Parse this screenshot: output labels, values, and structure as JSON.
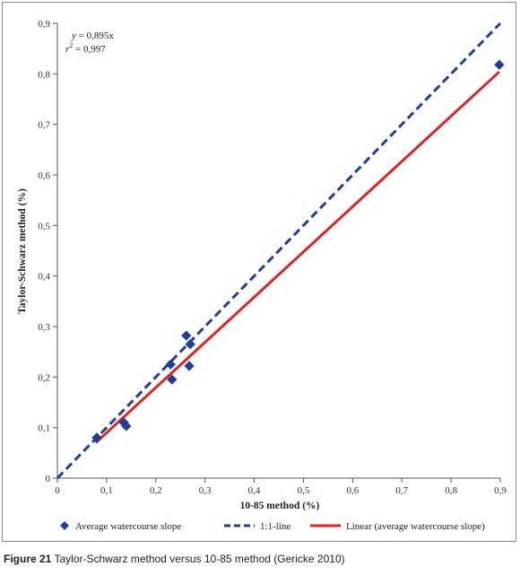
{
  "chart_data": {
    "type": "scatter",
    "xlabel": "10-85 method (%)",
    "ylabel": "Taylor-Schwarz method (%)",
    "xlim": [
      0,
      0.9
    ],
    "ylim": [
      0,
      0.9
    ],
    "x_ticks": [
      "0",
      "0,1",
      "0,2",
      "0,3",
      "0,4",
      "0,5",
      "0,6",
      "0,7",
      "0,8",
      "0,9"
    ],
    "y_ticks": [
      "0",
      "0,1",
      "0,2",
      "0,3",
      "0,4",
      "0,5",
      "0,6",
      "0,7",
      "0,8",
      "0,9"
    ],
    "grid": false,
    "legend_position": "bottom",
    "series": [
      {
        "name": "Average watercourse slope",
        "kind": "scatter",
        "color": "#1f3f99",
        "points": [
          {
            "x": 0.08,
            "y": 0.08
          },
          {
            "x": 0.135,
            "y": 0.11
          },
          {
            "x": 0.14,
            "y": 0.103
          },
          {
            "x": 0.23,
            "y": 0.225
          },
          {
            "x": 0.233,
            "y": 0.195
          },
          {
            "x": 0.262,
            "y": 0.282
          },
          {
            "x": 0.27,
            "y": 0.265
          },
          {
            "x": 0.268,
            "y": 0.222
          },
          {
            "x": 0.898,
            "y": 0.818
          }
        ]
      },
      {
        "name": "1:1-line",
        "kind": "line-dashed",
        "color": "#1f3f99",
        "points": [
          {
            "x": 0,
            "y": 0
          },
          {
            "x": 0.9,
            "y": 0.9
          }
        ]
      },
      {
        "name": "Linear (average watercourse slope)",
        "kind": "line",
        "color": "#e32222",
        "points": [
          {
            "x": 0.078,
            "y": 0.07
          },
          {
            "x": 0.898,
            "y": 0.804
          }
        ]
      }
    ],
    "annotations": {
      "equation_y": "y",
      "equation_value": " = 0,895x",
      "r2_label": "r",
      "r2_sup": "2",
      "r2_value": " = 0,997"
    }
  },
  "caption": {
    "label": "Figure 21",
    "text": " Taylor-Schwarz method versus 10-85 method (Gericke 2010)"
  }
}
